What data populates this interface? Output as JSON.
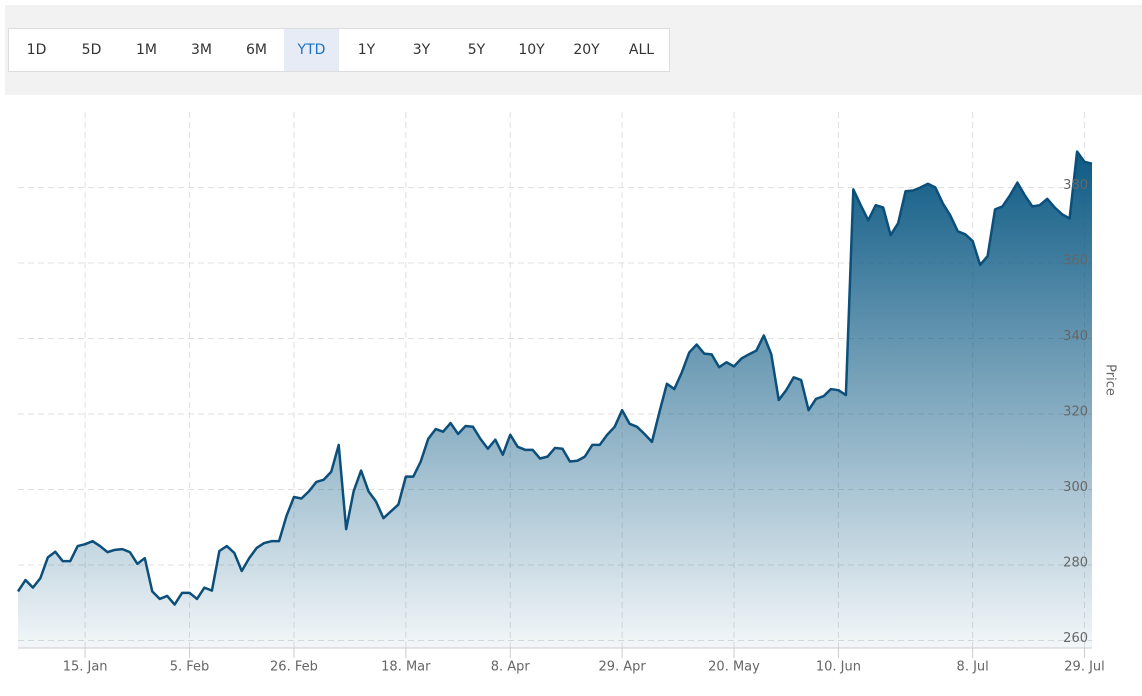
{
  "range_buttons": [
    "1D",
    "5D",
    "1M",
    "3M",
    "6M",
    "YTD",
    "1Y",
    "3Y",
    "5Y",
    "10Y",
    "20Y",
    "ALL"
  ],
  "selected_range": "YTD",
  "chart_data": {
    "type": "area",
    "y_axis_label": "Price",
    "color": "#0d5a84",
    "line_color": "#0b4f7a",
    "grid": true,
    "ylim": [
      258,
      400
    ],
    "yticks": [
      260,
      280,
      300,
      320,
      340,
      360,
      380
    ],
    "categories": [
      null,
      null,
      null,
      null,
      null,
      null,
      null,
      null,
      null,
      "15. Jan",
      null,
      null,
      null,
      null,
      null,
      null,
      null,
      null,
      null,
      null,
      null,
      null,
      null,
      "5. Feb",
      null,
      null,
      null,
      null,
      null,
      null,
      null,
      null,
      null,
      null,
      null,
      null,
      null,
      "26. Feb",
      null,
      null,
      null,
      null,
      null,
      null,
      null,
      null,
      null,
      null,
      null,
      null,
      null,
      null,
      "18. Mar",
      null,
      null,
      null,
      null,
      null,
      null,
      null,
      null,
      null,
      null,
      null,
      null,
      null,
      "8. Apr",
      null,
      null,
      null,
      null,
      null,
      null,
      null,
      null,
      null,
      null,
      null,
      null,
      null,
      null,
      "29. Apr",
      null,
      null,
      null,
      null,
      null,
      null,
      null,
      null,
      null,
      null,
      null,
      null,
      null,
      null,
      "20. May",
      null,
      null,
      null,
      null,
      null,
      null,
      null,
      null,
      null,
      null,
      null,
      null,
      null,
      "10. Jun",
      null,
      null,
      null,
      null,
      null,
      null,
      null,
      null,
      null,
      null,
      null,
      null,
      null,
      null,
      null,
      null,
      null,
      "8. Jul",
      null,
      null,
      null,
      null,
      null,
      null,
      null,
      null,
      null,
      null,
      null,
      null,
      null,
      null,
      "29. Jul",
      null
    ],
    "values": [
      273,
      276,
      274,
      276.5,
      282,
      283.5,
      281,
      281,
      285,
      285.5,
      286.3,
      285,
      283.4,
      284,
      284.2,
      283.4,
      280.3,
      281.8,
      273,
      271,
      271.8,
      269.5,
      272.6,
      272.6,
      271,
      274,
      273.2,
      283.7,
      285,
      283.2,
      278.4,
      281.8,
      284.5,
      285.8,
      286.3,
      286.3,
      293,
      298,
      297.6,
      299.5,
      302,
      302.6,
      304.7,
      311.8,
      289.5,
      299.5,
      305,
      299.5,
      296.8,
      292.4,
      294.2,
      296,
      303.4,
      303.4,
      307.4,
      313.4,
      316,
      315.3,
      317.6,
      314.7,
      316.8,
      316.6,
      313.4,
      310.8,
      313.2,
      309.2,
      314.5,
      311.3,
      310.5,
      310.5,
      308.2,
      308.7,
      311,
      310.8,
      307.4,
      307.6,
      308.7,
      311.8,
      311.8,
      314.5,
      316.6,
      321,
      317.4,
      316.6,
      314.7,
      312.6,
      320.5,
      328,
      326.6,
      331,
      336.3,
      338.4,
      336,
      335.8,
      332.4,
      333.7,
      332.6,
      334.7,
      335.8,
      336.8,
      340.8,
      335.8,
      323.7,
      326.3,
      329.7,
      329,
      321,
      324,
      324.7,
      326.6,
      326.3,
      325,
      379.5,
      375.3,
      371.3,
      375.3,
      374.7,
      367.4,
      370.5,
      379,
      379.2,
      380,
      381,
      380,
      375.8,
      372.6,
      368.4,
      367.6,
      365.8,
      359.5,
      361.8,
      374.2,
      375,
      377.9,
      381.3,
      377.9,
      375,
      375.3,
      377,
      374.7,
      372.9,
      371.8,
      389.5,
      386.8,
      386.3
    ]
  }
}
